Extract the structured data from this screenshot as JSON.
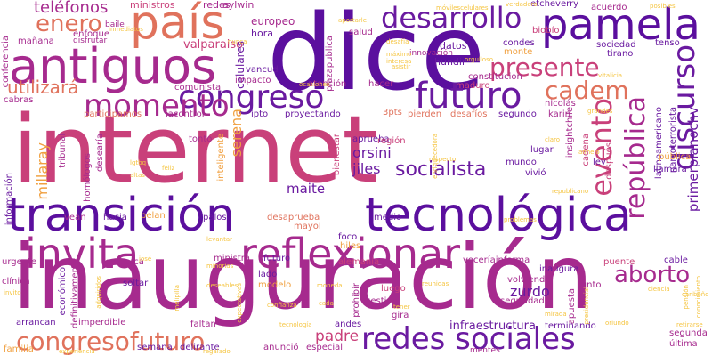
{
  "colors": {
    "background": "#ffffff",
    "deep_purple": "#5b0f9e",
    "purple": "#6a1aa0",
    "magenta": "#a62a8e",
    "rose": "#c9407a",
    "salmon": "#e0725c",
    "orange": "#f0a040",
    "yellow": "#f5c542"
  },
  "words": [
    {
      "text": "internet",
      "color": "#c9407a"
    },
    {
      "text": "inauguración",
      "color": "#a62a8e"
    },
    {
      "text": "dice",
      "color": "#5b0f9e"
    },
    {
      "text": "transición",
      "color": "#5b0f9e"
    },
    {
      "text": "tecnológica",
      "color": "#5b0f9e"
    },
    {
      "text": "invita",
      "color": "#a62a8e"
    },
    {
      "text": "reflexionar",
      "color": "#a62a8e"
    },
    {
      "text": "antiguos",
      "color": "#a62a8e"
    },
    {
      "text": "país",
      "color": "#e0725c"
    },
    {
      "text": "pamela",
      "color": "#5b0f9e"
    },
    {
      "text": "congreso",
      "color": "#6a1aa0"
    },
    {
      "text": "futuro",
      "color": "#6a1aa0"
    },
    {
      "text": "redes sociales",
      "color": "#6a1aa0"
    },
    {
      "text": "congresofuturo",
      "color": "#e0725c"
    },
    {
      "text": "momento",
      "color": "#a62a8e"
    },
    {
      "text": "desarrollo",
      "color": "#6a1aa0"
    },
    {
      "text": "presente",
      "color": "#c9407a"
    },
    {
      "text": "cadem",
      "color": "#e0725c"
    },
    {
      "text": "enero",
      "color": "#e0725c"
    },
    {
      "text": "aborto",
      "color": "#a62a8e"
    },
    {
      "text": "evento",
      "color": "#c9407a"
    },
    {
      "text": "discurso",
      "color": "#6a1aa0"
    },
    {
      "text": "república",
      "color": "#a62a8e"
    },
    {
      "text": "teléfonos",
      "color": "#a62a8e"
    },
    {
      "text": "utilizará",
      "color": "#e0725c"
    },
    {
      "text": "socialista",
      "color": "#6a1aa0"
    },
    {
      "text": "orsini",
      "color": "#6a1aa0"
    },
    {
      "text": "jiles",
      "color": "#6a1aa0"
    },
    {
      "text": "maite",
      "color": "#6a1aa0"
    },
    {
      "text": "serena",
      "color": "#f0a040"
    },
    {
      "text": "millaray",
      "color": "#f0a040"
    },
    {
      "text": "zurdo",
      "color": "#6a1aa0"
    },
    {
      "text": "padre",
      "color": "#c9407a"
    },
    {
      "text": "infraestructura",
      "color": "#6a1aa0"
    },
    {
      "text": "primerplanochv",
      "color": "#6a1aa0"
    },
    {
      "text": "europeo",
      "color": "#a62a8e"
    },
    {
      "text": "valparaiso",
      "color": "#c9407a"
    },
    {
      "text": "ministros",
      "color": "#c9407a"
    },
    {
      "text": "aylwin",
      "color": "#a62a8e"
    },
    {
      "text": "redes",
      "color": "#a62a8e"
    },
    {
      "text": "hora",
      "color": "#6a1aa0"
    },
    {
      "text": "celulares",
      "color": "#6a1aa0"
    },
    {
      "text": "salud",
      "color": "#a62a8e"
    },
    {
      "text": "datos",
      "color": "#6a1aa0"
    },
    {
      "text": "condes",
      "color": "#6a1aa0"
    },
    {
      "text": "sociedad",
      "color": "#6a1aa0"
    },
    {
      "text": "tenso",
      "color": "#6a1aa0"
    },
    {
      "text": "tirano",
      "color": "#6a1aa0"
    },
    {
      "text": "etcheverry",
      "color": "#6a1aa0"
    },
    {
      "text": "acuerdo",
      "color": "#a62a8e"
    },
    {
      "text": "biobío",
      "color": "#c9407a"
    },
    {
      "text": "monte",
      "color": "#f0a040"
    },
    {
      "text": "hundir",
      "color": "#6a1aa0"
    },
    {
      "text": "constitucion",
      "color": "#a62a8e"
    },
    {
      "text": "maduro",
      "color": "#c9407a"
    },
    {
      "text": "impacto",
      "color": "#a62a8e"
    },
    {
      "text": "atención",
      "color": "#a62a8e"
    },
    {
      "text": "hacer",
      "color": "#a62a8e"
    },
    {
      "text": "comunista",
      "color": "#a62a8e"
    },
    {
      "text": "participamos",
      "color": "#e0725c"
    },
    {
      "text": "iacontrol",
      "color": "#a62a8e"
    },
    {
      "text": "ipto",
      "color": "#6a1aa0"
    },
    {
      "text": "proyectando",
      "color": "#6a1aa0"
    },
    {
      "text": "3pts",
      "color": "#e0725c"
    },
    {
      "text": "pierden",
      "color": "#e0725c"
    },
    {
      "text": "desafíos",
      "color": "#e0725c"
    },
    {
      "text": "segundo",
      "color": "#6a1aa0"
    },
    {
      "text": "nicolás",
      "color": "#a62a8e"
    },
    {
      "text": "karin",
      "color": "#a62a8e"
    },
    {
      "text": "insightchile",
      "color": "#a62a8e"
    },
    {
      "text": "latinoamericano",
      "color": "#6a1aa0"
    },
    {
      "text": "narcoterrorista",
      "color": "#6a1aa0"
    },
    {
      "text": "tonto",
      "color": "#a62a8e"
    },
    {
      "text": "aprueba",
      "color": "#6a1aa0"
    },
    {
      "text": "región",
      "color": "#c9407a"
    },
    {
      "text": "lugar",
      "color": "#6a1aa0"
    },
    {
      "text": "mundo",
      "color": "#6a1aa0"
    },
    {
      "text": "vivió",
      "color": "#6a1aa0"
    },
    {
      "text": "ley",
      "color": "#6a1aa0"
    },
    {
      "text": "llamara",
      "color": "#6a1aa0"
    },
    {
      "text": "pública",
      "color": "#f0a040"
    },
    {
      "text": "después",
      "color": "#c9407a"
    },
    {
      "text": "cadena",
      "color": "#c9407a"
    },
    {
      "text": "bienestar",
      "color": "#c9407a"
    },
    {
      "text": "inteligente",
      "color": "#f0a040"
    },
    {
      "text": "tribunal",
      "color": "#a62a8e"
    },
    {
      "text": "información",
      "color": "#6a1aa0"
    },
    {
      "text": "homólogos",
      "color": "#a62a8e"
    },
    {
      "text": "desearía",
      "color": "#a62a8e"
    },
    {
      "text": "vean",
      "color": "#a62a8e"
    },
    {
      "text": "hacia",
      "color": "#6a1aa0"
    },
    {
      "text": "pelan",
      "color": "#f0a040"
    },
    {
      "text": "palos",
      "color": "#6a1aa0"
    },
    {
      "text": "desaprueba",
      "color": "#e0725c"
    },
    {
      "text": "medio",
      "color": "#6a1aa0"
    },
    {
      "text": "mayol",
      "color": "#e0725c"
    },
    {
      "text": "foco",
      "color": "#6a1aa0"
    },
    {
      "text": "hiles",
      "color": "#f0a040"
    },
    {
      "text": "ministra",
      "color": "#a62a8e"
    },
    {
      "text": "futuro",
      "color": "#6a1aa0"
    },
    {
      "text": "alemania",
      "color": "#c9407a"
    },
    {
      "text": "voceríainforma",
      "color": "#a62a8e"
    },
    {
      "text": "inaugura",
      "color": "#6a1aa0"
    },
    {
      "text": "puente",
      "color": "#c9407a"
    },
    {
      "text": "cable",
      "color": "#6a1aa0"
    },
    {
      "text": "clínica",
      "color": "#a62a8e"
    },
    {
      "text": "urgente",
      "color": "#a62a8e"
    },
    {
      "text": "enmarca",
      "color": "#a62a8e"
    },
    {
      "text": "económico",
      "color": "#6a1aa0"
    },
    {
      "text": "definitivamente",
      "color": "#a62a8e"
    },
    {
      "text": "soltar",
      "color": "#6a1aa0"
    },
    {
      "text": "lado",
      "color": "#6a1aa0"
    },
    {
      "text": "modelo",
      "color": "#f0a040"
    },
    {
      "text": "luego",
      "color": "#c9407a"
    },
    {
      "text": "volviendo",
      "color": "#a62a8e"
    },
    {
      "text": "junto",
      "color": "#a62a8e"
    },
    {
      "text": "apuesta",
      "color": "#a62a8e"
    },
    {
      "text": "prohibir",
      "color": "#a62a8e"
    },
    {
      "text": "seguridad",
      "color": "#a62a8e"
    },
    {
      "text": "gestión",
      "color": "#a62a8e"
    },
    {
      "text": "gira",
      "color": "#a62a8e"
    },
    {
      "text": "arrancan",
      "color": "#6a1aa0"
    },
    {
      "text": "imperdible",
      "color": "#a62a8e"
    },
    {
      "text": "faltan",
      "color": "#a62a8e"
    },
    {
      "text": "andes",
      "color": "#6a1aa0"
    },
    {
      "text": "terminando",
      "color": "#6a1aa0"
    },
    {
      "text": "segunda",
      "color": "#a62a8e"
    },
    {
      "text": "última",
      "color": "#a62a8e"
    },
    {
      "text": "semana",
      "color": "#6a1aa0"
    },
    {
      "text": "delirante",
      "color": "#6a1aa0"
    },
    {
      "text": "anunció",
      "color": "#a62a8e"
    },
    {
      "text": "especial",
      "color": "#a62a8e"
    },
    {
      "text": "familia",
      "color": "#f0a040"
    },
    {
      "text": "mañana",
      "color": "#a62a8e"
    },
    {
      "text": "cabras",
      "color": "#a62a8e"
    },
    {
      "text": "enfoque",
      "color": "#a62a8e"
    },
    {
      "text": "conferencia",
      "color": "#a62a8e"
    },
    {
      "text": "vancud",
      "color": "#6a1aa0"
    },
    {
      "text": "plazapublica",
      "color": "#a62a8e"
    },
    {
      "text": "innovación",
      "color": "#a62a8e"
    },
    {
      "text": "disfrutar",
      "color": "#a62a8e"
    },
    {
      "text": "baile",
      "color": "#a62a8e"
    },
    {
      "text": "mentes",
      "color": "#a62a8e"
    },
    {
      "text": "desafía",
      "color": "#f5c542"
    },
    {
      "text": "móvilescelulares",
      "color": "#f5c542"
    },
    {
      "text": "verdadero",
      "color": "#f5c542"
    },
    {
      "text": "posibles",
      "color": "#f5c542"
    },
    {
      "text": "aportarle",
      "color": "#f5c542"
    },
    {
      "text": "máximo",
      "color": "#f5c542"
    },
    {
      "text": "interesa",
      "color": "#f5c542"
    },
    {
      "text": "asistir",
      "color": "#f5c542"
    },
    {
      "text": "orgulloso",
      "color": "#f5c542"
    },
    {
      "text": "inmediatos",
      "color": "#f5c542"
    },
    {
      "text": "vitalicia",
      "color": "#f5c542"
    },
    {
      "text": "republicano",
      "color": "#f5c542"
    },
    {
      "text": "respecto",
      "color": "#f5c542"
    },
    {
      "text": "claro",
      "color": "#f5c542"
    },
    {
      "text": "anhelo",
      "color": "#f5c542"
    },
    {
      "text": "lgtbq",
      "color": "#f5c542"
    },
    {
      "text": "altas",
      "color": "#f5c542"
    },
    {
      "text": "feliz",
      "color": "#f5c542"
    },
    {
      "text": "levantar",
      "color": "#f5c542"
    },
    {
      "text": "josé",
      "color": "#f5c542"
    },
    {
      "text": "minorías",
      "color": "#f5c542"
    },
    {
      "text": "deseables",
      "color": "#f5c542"
    },
    {
      "text": "mirada",
      "color": "#f5c542"
    },
    {
      "text": "invito",
      "color": "#f5c542"
    },
    {
      "text": "melipilla",
      "color": "#f5c542"
    },
    {
      "text": "expectativas",
      "color": "#f5c542"
    },
    {
      "text": "confianza",
      "color": "#f5c542"
    },
    {
      "text": "cada",
      "color": "#f5c542"
    },
    {
      "text": "reunidas",
      "color": "#f5c542"
    },
    {
      "text": "presidencial",
      "color": "#f5c542"
    },
    {
      "text": "oriundo",
      "color": "#f5c542"
    },
    {
      "text": "tecnología",
      "color": "#f5c542"
    },
    {
      "text": "regalado",
      "color": "#f5c542"
    },
    {
      "text": "experiencia",
      "color": "#f5c542"
    },
    {
      "text": "retirarse",
      "color": "#f5c542"
    },
    {
      "text": "pensión",
      "color": "#f5c542"
    },
    {
      "text": "conocimiento",
      "color": "#f5c542"
    },
    {
      "text": "problemas",
      "color": "#f5c542"
    },
    {
      "text": "grandes",
      "color": "#f5c542"
    },
    {
      "text": "caribeño",
      "color": "#f5c542"
    },
    {
      "text": "ciencia",
      "color": "#f5c542"
    },
    {
      "text": "nunca",
      "color": "#f5c542"
    },
    {
      "text": "tener",
      "color": "#f5c542"
    },
    {
      "text": "moneda",
      "color": "#f5c542"
    },
    {
      "text": "enriquecedora",
      "color": "#f5c542"
    },
    {
      "text": "adquiridos",
      "color": "#f5c542"
    },
    {
      "text": "ocasiones",
      "color": "#f5c542"
    }
  ]
}
